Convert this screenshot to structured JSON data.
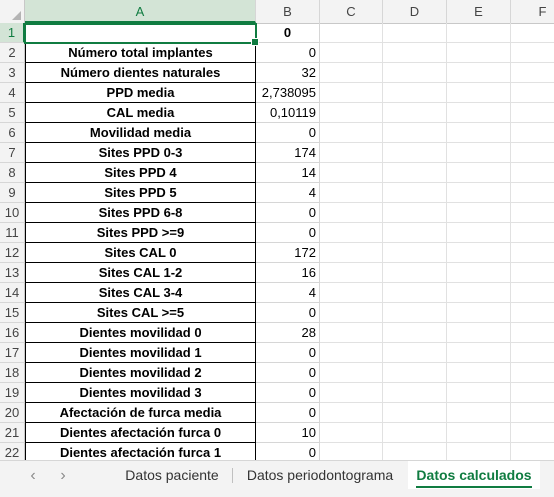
{
  "columns": [
    "A",
    "B",
    "C",
    "D",
    "E",
    "F"
  ],
  "rows": [
    {
      "num": "1",
      "label": "",
      "value": "0",
      "bold_value": true
    },
    {
      "num": "2",
      "label": "Número total implantes",
      "value": "0"
    },
    {
      "num": "3",
      "label": "Número dientes naturales",
      "value": "32"
    },
    {
      "num": "4",
      "label": "PPD media",
      "value": "2,738095"
    },
    {
      "num": "5",
      "label": "CAL media",
      "value": "0,10119"
    },
    {
      "num": "6",
      "label": "Movilidad media",
      "value": "0"
    },
    {
      "num": "7",
      "label": "Sites PPD 0-3",
      "value": "174"
    },
    {
      "num": "8",
      "label": "Sites PPD 4",
      "value": "14"
    },
    {
      "num": "9",
      "label": "Sites PPD 5",
      "value": "4"
    },
    {
      "num": "10",
      "label": "Sites PPD 6-8",
      "value": "0"
    },
    {
      "num": "11",
      "label": "Sites PPD >=9",
      "value": "0"
    },
    {
      "num": "12",
      "label": "Sites CAL 0",
      "value": "172"
    },
    {
      "num": "13",
      "label": "Sites CAL 1-2",
      "value": "16"
    },
    {
      "num": "14",
      "label": "Sites CAL 3-4",
      "value": "4"
    },
    {
      "num": "15",
      "label": "Sites CAL >=5",
      "value": "0"
    },
    {
      "num": "16",
      "label": "Dientes movilidad 0",
      "value": "28"
    },
    {
      "num": "17",
      "label": "Dientes movilidad 1",
      "value": "0"
    },
    {
      "num": "18",
      "label": "Dientes movilidad 2",
      "value": "0"
    },
    {
      "num": "19",
      "label": "Dientes movilidad 3",
      "value": "0"
    },
    {
      "num": "20",
      "label": "Afectación de furca media",
      "value": "0"
    },
    {
      "num": "21",
      "label": "Dientes afectación furca 0",
      "value": "10"
    },
    {
      "num": "22",
      "label": "Dientes afectación furca 1",
      "value": "0"
    }
  ],
  "tabs": {
    "prev_icon": "chevron-left-icon",
    "next_icon": "chevron-right-icon",
    "prev_glyph": "‹",
    "next_glyph": "›",
    "sheet1": "Datos paciente",
    "sheet2": "Datos periodontograma",
    "sheet3": "Datos calculados"
  },
  "colors": {
    "accent": "#107c41",
    "selected_header": "#d3e4d6"
  }
}
